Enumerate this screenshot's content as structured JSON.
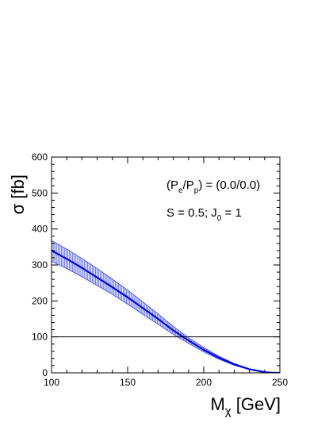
{
  "chart_data": {
    "type": "line",
    "title": "",
    "xlabel": "M",
    "xlabel_sub": "χ",
    "xlabel_unit": " [GeV]",
    "ylabel": "σ [fb]",
    "xlim": [
      100,
      250
    ],
    "ylim": [
      0,
      600
    ],
    "xticks": [
      100,
      150,
      200,
      250
    ],
    "yticks": [
      0,
      100,
      200,
      300,
      400,
      500,
      600
    ],
    "grid": false,
    "legend": "none",
    "annotations": {
      "polarization": {
        "open": "(P",
        "sub1": "e",
        "mid": "/P",
        "sub2": "p",
        "close": ") = (0.0/0.0)"
      },
      "params": {
        "text": "S = 0.5; J",
        "sub": "0",
        "tail": " = 1"
      }
    },
    "reference_line": {
      "y": 100,
      "color": "#000000"
    },
    "series": [
      {
        "color": "#0000ee",
        "band_color": "#2a3df0",
        "x": [
          100,
          110,
          120,
          130,
          140,
          150,
          160,
          170,
          180,
          190,
          200,
          210,
          220,
          230,
          240,
          245,
          250
        ],
        "y": [
          340,
          317,
          292,
          265,
          238,
          210,
          180,
          150,
          118,
          90,
          64,
          42,
          24,
          10,
          2,
          0.4,
          0
        ],
        "y_low": [
          310,
          290,
          267,
          243,
          218,
          191,
          163,
          135,
          107,
          82,
          58,
          38,
          21,
          9,
          1.8,
          0.35,
          0
        ],
        "y_high": [
          368,
          344,
          318,
          290,
          260,
          230,
          197,
          164,
          129,
          98,
          70,
          46,
          26,
          11,
          2.3,
          0.45,
          0
        ]
      }
    ]
  }
}
